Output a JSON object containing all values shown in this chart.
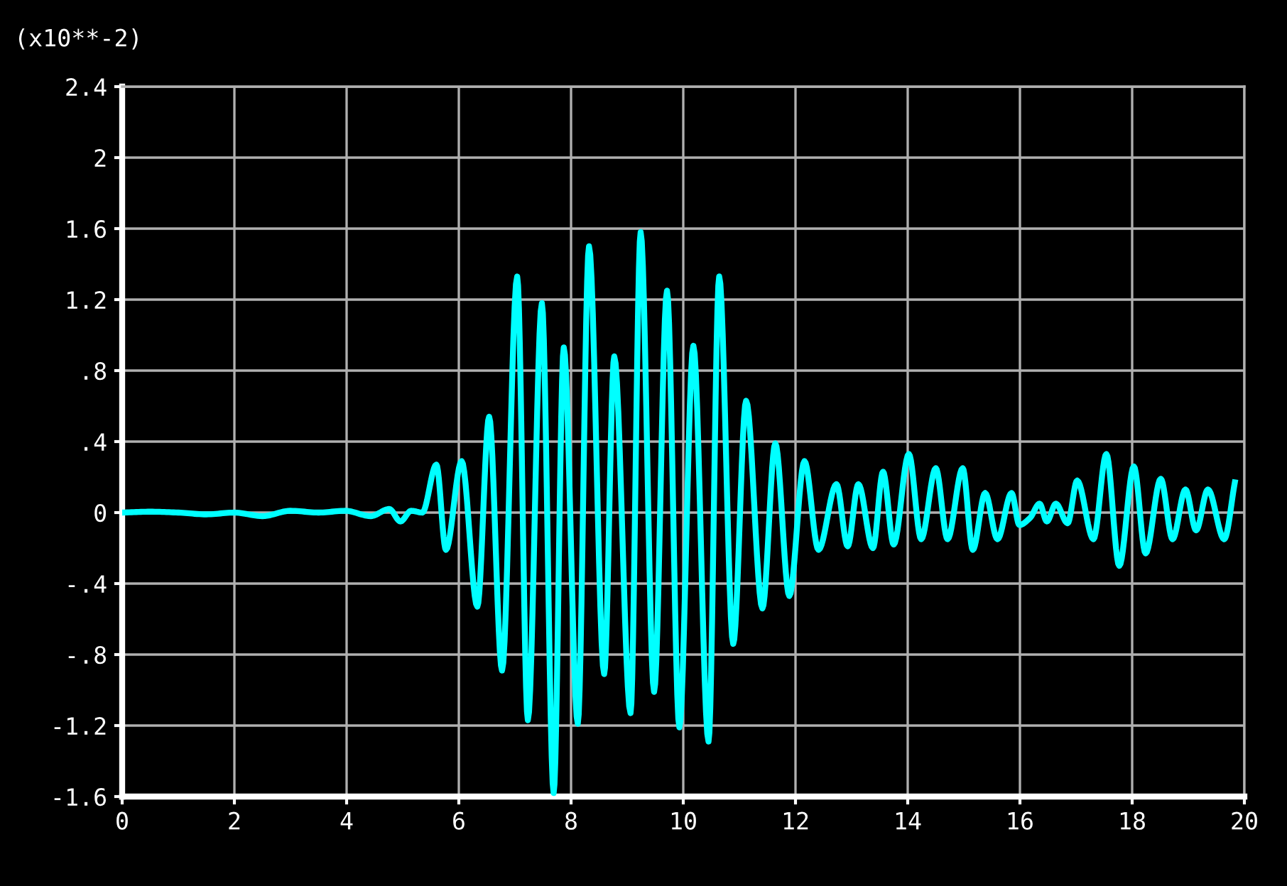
{
  "chart_data": {
    "type": "line",
    "ylabel": "(x10**-2)",
    "xlim": [
      0,
      20
    ],
    "xticks": [
      0,
      2,
      4,
      6,
      8,
      10,
      12,
      14,
      16,
      18,
      20
    ],
    "ylim": [
      -1.6,
      2.4
    ],
    "yticks": [
      {
        "value": -1.6,
        "label": "-1.6"
      },
      {
        "value": -1.2,
        "label": "-1.2"
      },
      {
        "value": -0.8,
        "label": "-.8"
      },
      {
        "value": -0.4,
        "label": "-.4"
      },
      0,
      {
        "value": 0.4,
        "label": ".4"
      },
      {
        "value": 0.8,
        "label": ".8"
      },
      {
        "value": 1.2,
        "label": "1.2"
      },
      {
        "value": 1.6,
        "label": "1.6"
      },
      2,
      {
        "value": 2.4,
        "label": "2.4"
      }
    ],
    "grid": true,
    "series": [
      {
        "color": "#00ffff",
        "x": [
          0,
          0.5,
          1,
          1.5,
          2,
          2.5,
          3,
          3.5,
          3.98,
          4.43,
          4.76,
          4.96,
          5.15,
          5.35,
          5.6,
          5.77,
          6.05,
          6.33,
          6.54,
          6.77,
          7.04,
          7.23,
          7.48,
          7.69,
          7.87,
          8.12,
          8.32,
          8.59,
          8.77,
          9.06,
          9.24,
          9.48,
          9.71,
          9.93,
          10.18,
          10.45,
          10.64,
          10.89,
          11.12,
          11.41,
          11.64,
          11.89,
          12.16,
          12.41,
          12.73,
          12.93,
          13.12,
          13.38,
          13.56,
          13.75,
          14.02,
          14.24,
          14.5,
          14.71,
          14.98,
          15.16,
          15.38,
          15.6,
          15.85,
          15.99,
          16.18,
          16.35,
          16.48,
          16.64,
          16.85,
          17.02,
          17.31,
          17.54,
          17.77,
          18.03,
          18.24,
          18.51,
          18.72,
          18.95,
          19.14,
          19.35,
          19.64,
          19.83
        ],
        "values": [
          0,
          0.005,
          0,
          -0.01,
          0,
          -0.02,
          0.01,
          0,
          0.01,
          -0.02,
          0.02,
          -0.05,
          0.01,
          0,
          0.27,
          -0.21,
          0.29,
          -0.53,
          0.54,
          -0.89,
          1.33,
          -1.17,
          1.18,
          -1.58,
          0.93,
          -1.19,
          1.5,
          -0.91,
          0.88,
          -1.13,
          1.58,
          -1.01,
          1.25,
          -1.21,
          0.94,
          -1.29,
          1.33,
          -0.74,
          0.63,
          -0.54,
          0.39,
          -0.47,
          0.29,
          -0.21,
          0.16,
          -0.19,
          0.16,
          -0.2,
          0.23,
          -0.18,
          0.33,
          -0.15,
          0.25,
          -0.15,
          0.25,
          -0.21,
          0.11,
          -0.15,
          0.11,
          -0.07,
          -0.03,
          0.05,
          -0.05,
          0.05,
          -0.06,
          0.18,
          -0.15,
          0.33,
          -0.3,
          0.26,
          -0.23,
          0.19,
          -0.15,
          0.13,
          -0.1,
          0.13,
          -0.15,
          0.17
        ]
      }
    ]
  }
}
